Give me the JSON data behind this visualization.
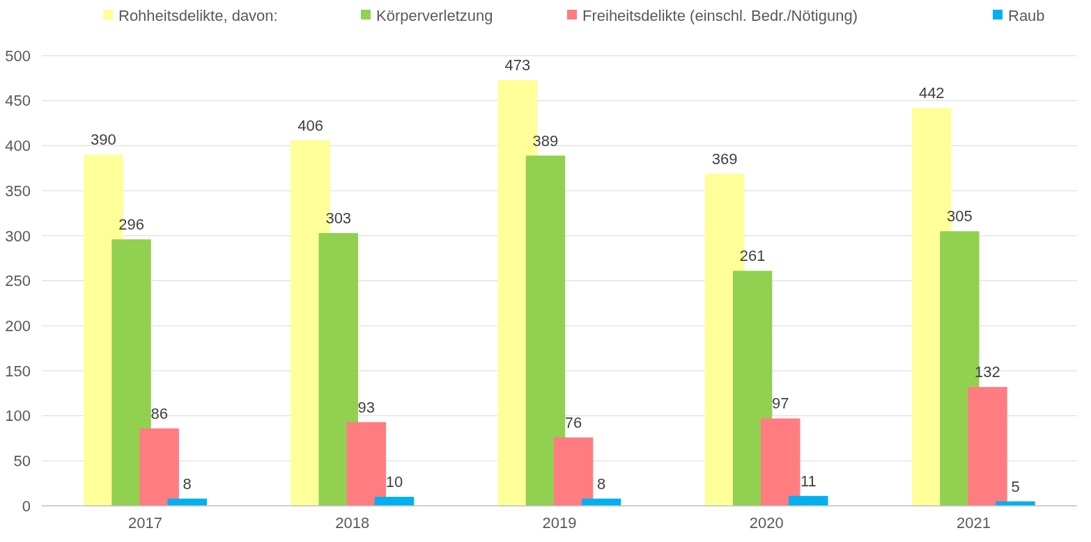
{
  "chart_data": {
    "type": "bar",
    "categories": [
      "2017",
      "2018",
      "2019",
      "2020",
      "2021"
    ],
    "series": [
      {
        "name": "Rohheitsdelikte, davon:",
        "color": "#ffff99",
        "values": [
          390,
          406,
          473,
          369,
          442
        ]
      },
      {
        "name": "Körperverletzung",
        "color": "#92d050",
        "values": [
          296,
          303,
          389,
          261,
          305
        ]
      },
      {
        "name": "Freiheitsdelikte (einschl. Bedr./Nötigung)",
        "color": "#ff7c80",
        "values": [
          86,
          93,
          76,
          97,
          132
        ]
      },
      {
        "name": "Raub",
        "color": "#00b0f0",
        "values": [
          8,
          10,
          8,
          11,
          5
        ]
      }
    ],
    "ylim": [
      0,
      500
    ],
    "yticks": [
      0,
      50,
      100,
      150,
      200,
      250,
      300,
      350,
      400,
      450,
      500
    ],
    "grid": "y",
    "legend": "top",
    "data_labels": true
  }
}
